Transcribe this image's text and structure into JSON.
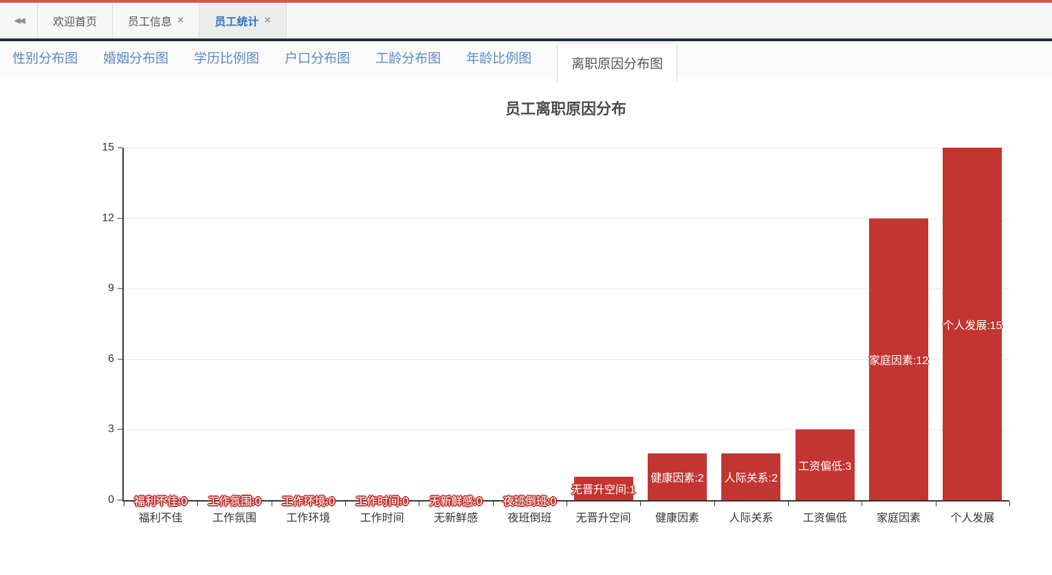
{
  "window_tabs": {
    "collapse_icon": "◀◀",
    "close_icon": "×",
    "items": [
      {
        "label": "欢迎首页",
        "closable": false,
        "active": false
      },
      {
        "label": "员工信息",
        "closable": true,
        "active": false
      },
      {
        "label": "员工统计",
        "closable": true,
        "active": true
      }
    ]
  },
  "subtabs": {
    "items": [
      {
        "label": "性别分布图",
        "active": false
      },
      {
        "label": "婚姻分布图",
        "active": false
      },
      {
        "label": "学历比例图",
        "active": false
      },
      {
        "label": "户口分布图",
        "active": false
      },
      {
        "label": "工龄分布图",
        "active": false
      },
      {
        "label": "年龄比例图",
        "active": false
      },
      {
        "label": "离职原因分布图",
        "active": true
      }
    ]
  },
  "chart_data": {
    "type": "bar",
    "title": "员工离职原因分布",
    "categories": [
      "福利不佳",
      "工作氛围",
      "工作环境",
      "工作时间",
      "无新鲜感",
      "夜班倒班",
      "无晋升空间",
      "健康因素",
      "人际关系",
      "工资偏低",
      "家庭因素",
      "个人发展"
    ],
    "values": [
      0,
      0,
      0,
      0,
      0,
      0,
      1,
      2,
      2,
      3,
      12,
      15
    ],
    "label_format": "{name}:{value}",
    "xlabel": "",
    "ylabel": "",
    "yticks": [
      0,
      3,
      6,
      9,
      12,
      15
    ],
    "ylim": [
      0,
      15
    ],
    "grid": true,
    "legend": false,
    "bar_color": "#c23531",
    "bar_width_ratio": 0.8
  },
  "colors": {
    "accent_red": "#d9534f",
    "dark_border": "#222d32",
    "bar_red": "#c23531",
    "tab_active_blue": "#2a76c5",
    "subtab_blue": "#5a8bc2"
  }
}
